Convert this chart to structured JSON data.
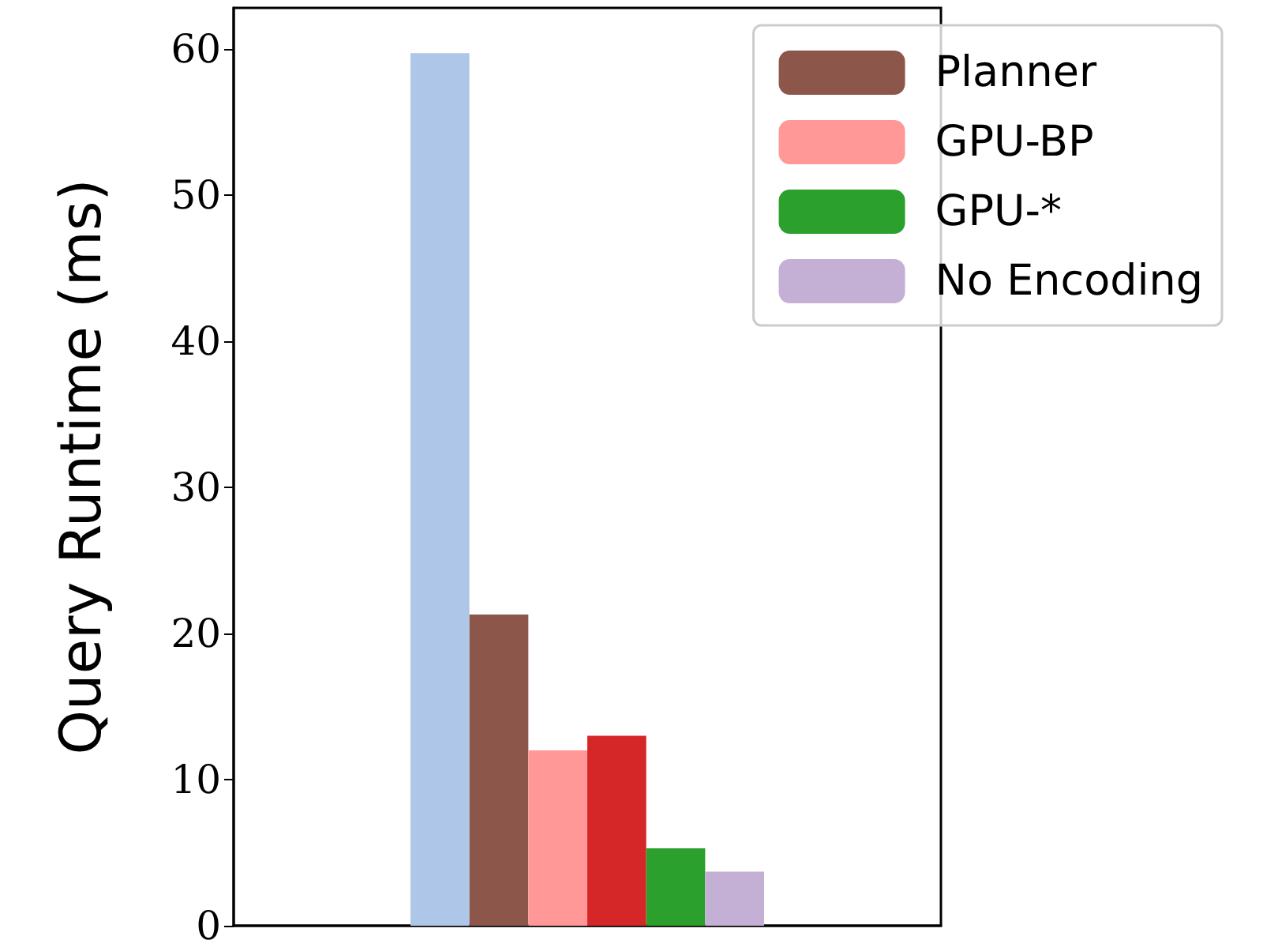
{
  "chart_data": {
    "type": "bar",
    "ylabel": "Query Runtime (ms)",
    "categories": [
      null
    ],
    "series": [
      {
        "color": "#aec7e8",
        "values": [
          59.7
        ]
      },
      {
        "name": "Planner",
        "color": "#8c564b",
        "values": [
          21.3
        ]
      },
      {
        "name": "GPU-BP",
        "color": "#ff9896",
        "values": [
          12.0
        ]
      },
      {
        "color": "#d62728",
        "values": [
          13.0
        ]
      },
      {
        "name": "GPU-*",
        "color": "#2ca02c",
        "values": [
          5.3
        ]
      },
      {
        "name": "No Encoding",
        "color": "#c5b0d5",
        "values": [
          3.7
        ]
      }
    ],
    "ylim": [
      0,
      62.8
    ],
    "yticks": [
      0,
      10,
      20,
      30,
      40,
      50,
      60
    ],
    "tick_labels": "y",
    "legend": "top right",
    "grid": false
  }
}
